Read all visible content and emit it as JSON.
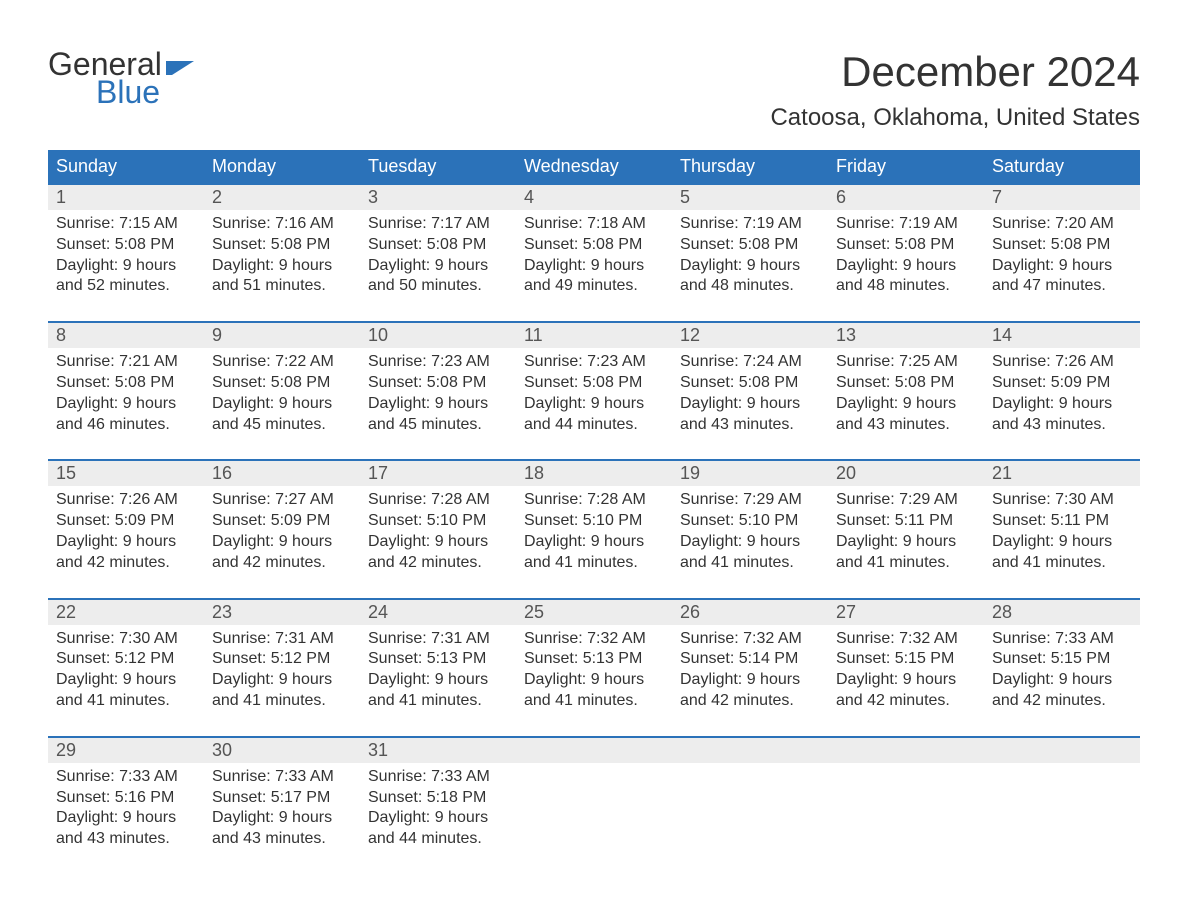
{
  "logo": {
    "text1": "General",
    "text2": "Blue",
    "flag_color": "#2b72b9"
  },
  "title": "December 2024",
  "location": "Catoosa, Oklahoma, United States",
  "day_names": [
    "Sunday",
    "Monday",
    "Tuesday",
    "Wednesday",
    "Thursday",
    "Friday",
    "Saturday"
  ],
  "colors": {
    "header_bg": "#2b72b9",
    "header_text": "#ffffff",
    "date_row_bg": "#ededed",
    "week_border": "#2b72b9",
    "body_text": "#333333"
  },
  "weeks": [
    [
      {
        "date": "1",
        "sunrise": "Sunrise: 7:15 AM",
        "sunset": "Sunset: 5:08 PM",
        "dl1": "Daylight: 9 hours",
        "dl2": "and 52 minutes."
      },
      {
        "date": "2",
        "sunrise": "Sunrise: 7:16 AM",
        "sunset": "Sunset: 5:08 PM",
        "dl1": "Daylight: 9 hours",
        "dl2": "and 51 minutes."
      },
      {
        "date": "3",
        "sunrise": "Sunrise: 7:17 AM",
        "sunset": "Sunset: 5:08 PM",
        "dl1": "Daylight: 9 hours",
        "dl2": "and 50 minutes."
      },
      {
        "date": "4",
        "sunrise": "Sunrise: 7:18 AM",
        "sunset": "Sunset: 5:08 PM",
        "dl1": "Daylight: 9 hours",
        "dl2": "and 49 minutes."
      },
      {
        "date": "5",
        "sunrise": "Sunrise: 7:19 AM",
        "sunset": "Sunset: 5:08 PM",
        "dl1": "Daylight: 9 hours",
        "dl2": "and 48 minutes."
      },
      {
        "date": "6",
        "sunrise": "Sunrise: 7:19 AM",
        "sunset": "Sunset: 5:08 PM",
        "dl1": "Daylight: 9 hours",
        "dl2": "and 48 minutes."
      },
      {
        "date": "7",
        "sunrise": "Sunrise: 7:20 AM",
        "sunset": "Sunset: 5:08 PM",
        "dl1": "Daylight: 9 hours",
        "dl2": "and 47 minutes."
      }
    ],
    [
      {
        "date": "8",
        "sunrise": "Sunrise: 7:21 AM",
        "sunset": "Sunset: 5:08 PM",
        "dl1": "Daylight: 9 hours",
        "dl2": "and 46 minutes."
      },
      {
        "date": "9",
        "sunrise": "Sunrise: 7:22 AM",
        "sunset": "Sunset: 5:08 PM",
        "dl1": "Daylight: 9 hours",
        "dl2": "and 45 minutes."
      },
      {
        "date": "10",
        "sunrise": "Sunrise: 7:23 AM",
        "sunset": "Sunset: 5:08 PM",
        "dl1": "Daylight: 9 hours",
        "dl2": "and 45 minutes."
      },
      {
        "date": "11",
        "sunrise": "Sunrise: 7:23 AM",
        "sunset": "Sunset: 5:08 PM",
        "dl1": "Daylight: 9 hours",
        "dl2": "and 44 minutes."
      },
      {
        "date": "12",
        "sunrise": "Sunrise: 7:24 AM",
        "sunset": "Sunset: 5:08 PM",
        "dl1": "Daylight: 9 hours",
        "dl2": "and 43 minutes."
      },
      {
        "date": "13",
        "sunrise": "Sunrise: 7:25 AM",
        "sunset": "Sunset: 5:08 PM",
        "dl1": "Daylight: 9 hours",
        "dl2": "and 43 minutes."
      },
      {
        "date": "14",
        "sunrise": "Sunrise: 7:26 AM",
        "sunset": "Sunset: 5:09 PM",
        "dl1": "Daylight: 9 hours",
        "dl2": "and 43 minutes."
      }
    ],
    [
      {
        "date": "15",
        "sunrise": "Sunrise: 7:26 AM",
        "sunset": "Sunset: 5:09 PM",
        "dl1": "Daylight: 9 hours",
        "dl2": "and 42 minutes."
      },
      {
        "date": "16",
        "sunrise": "Sunrise: 7:27 AM",
        "sunset": "Sunset: 5:09 PM",
        "dl1": "Daylight: 9 hours",
        "dl2": "and 42 minutes."
      },
      {
        "date": "17",
        "sunrise": "Sunrise: 7:28 AM",
        "sunset": "Sunset: 5:10 PM",
        "dl1": "Daylight: 9 hours",
        "dl2": "and 42 minutes."
      },
      {
        "date": "18",
        "sunrise": "Sunrise: 7:28 AM",
        "sunset": "Sunset: 5:10 PM",
        "dl1": "Daylight: 9 hours",
        "dl2": "and 41 minutes."
      },
      {
        "date": "19",
        "sunrise": "Sunrise: 7:29 AM",
        "sunset": "Sunset: 5:10 PM",
        "dl1": "Daylight: 9 hours",
        "dl2": "and 41 minutes."
      },
      {
        "date": "20",
        "sunrise": "Sunrise: 7:29 AM",
        "sunset": "Sunset: 5:11 PM",
        "dl1": "Daylight: 9 hours",
        "dl2": "and 41 minutes."
      },
      {
        "date": "21",
        "sunrise": "Sunrise: 7:30 AM",
        "sunset": "Sunset: 5:11 PM",
        "dl1": "Daylight: 9 hours",
        "dl2": "and 41 minutes."
      }
    ],
    [
      {
        "date": "22",
        "sunrise": "Sunrise: 7:30 AM",
        "sunset": "Sunset: 5:12 PM",
        "dl1": "Daylight: 9 hours",
        "dl2": "and 41 minutes."
      },
      {
        "date": "23",
        "sunrise": "Sunrise: 7:31 AM",
        "sunset": "Sunset: 5:12 PM",
        "dl1": "Daylight: 9 hours",
        "dl2": "and 41 minutes."
      },
      {
        "date": "24",
        "sunrise": "Sunrise: 7:31 AM",
        "sunset": "Sunset: 5:13 PM",
        "dl1": "Daylight: 9 hours",
        "dl2": "and 41 minutes."
      },
      {
        "date": "25",
        "sunrise": "Sunrise: 7:32 AM",
        "sunset": "Sunset: 5:13 PM",
        "dl1": "Daylight: 9 hours",
        "dl2": "and 41 minutes."
      },
      {
        "date": "26",
        "sunrise": "Sunrise: 7:32 AM",
        "sunset": "Sunset: 5:14 PM",
        "dl1": "Daylight: 9 hours",
        "dl2": "and 42 minutes."
      },
      {
        "date": "27",
        "sunrise": "Sunrise: 7:32 AM",
        "sunset": "Sunset: 5:15 PM",
        "dl1": "Daylight: 9 hours",
        "dl2": "and 42 minutes."
      },
      {
        "date": "28",
        "sunrise": "Sunrise: 7:33 AM",
        "sunset": "Sunset: 5:15 PM",
        "dl1": "Daylight: 9 hours",
        "dl2": "and 42 minutes."
      }
    ],
    [
      {
        "date": "29",
        "sunrise": "Sunrise: 7:33 AM",
        "sunset": "Sunset: 5:16 PM",
        "dl1": "Daylight: 9 hours",
        "dl2": "and 43 minutes."
      },
      {
        "date": "30",
        "sunrise": "Sunrise: 7:33 AM",
        "sunset": "Sunset: 5:17 PM",
        "dl1": "Daylight: 9 hours",
        "dl2": "and 43 minutes."
      },
      {
        "date": "31",
        "sunrise": "Sunrise: 7:33 AM",
        "sunset": "Sunset: 5:18 PM",
        "dl1": "Daylight: 9 hours",
        "dl2": "and 44 minutes."
      },
      {
        "date": "",
        "sunrise": "",
        "sunset": "",
        "dl1": "",
        "dl2": ""
      },
      {
        "date": "",
        "sunrise": "",
        "sunset": "",
        "dl1": "",
        "dl2": ""
      },
      {
        "date": "",
        "sunrise": "",
        "sunset": "",
        "dl1": "",
        "dl2": ""
      },
      {
        "date": "",
        "sunrise": "",
        "sunset": "",
        "dl1": "",
        "dl2": ""
      }
    ]
  ]
}
